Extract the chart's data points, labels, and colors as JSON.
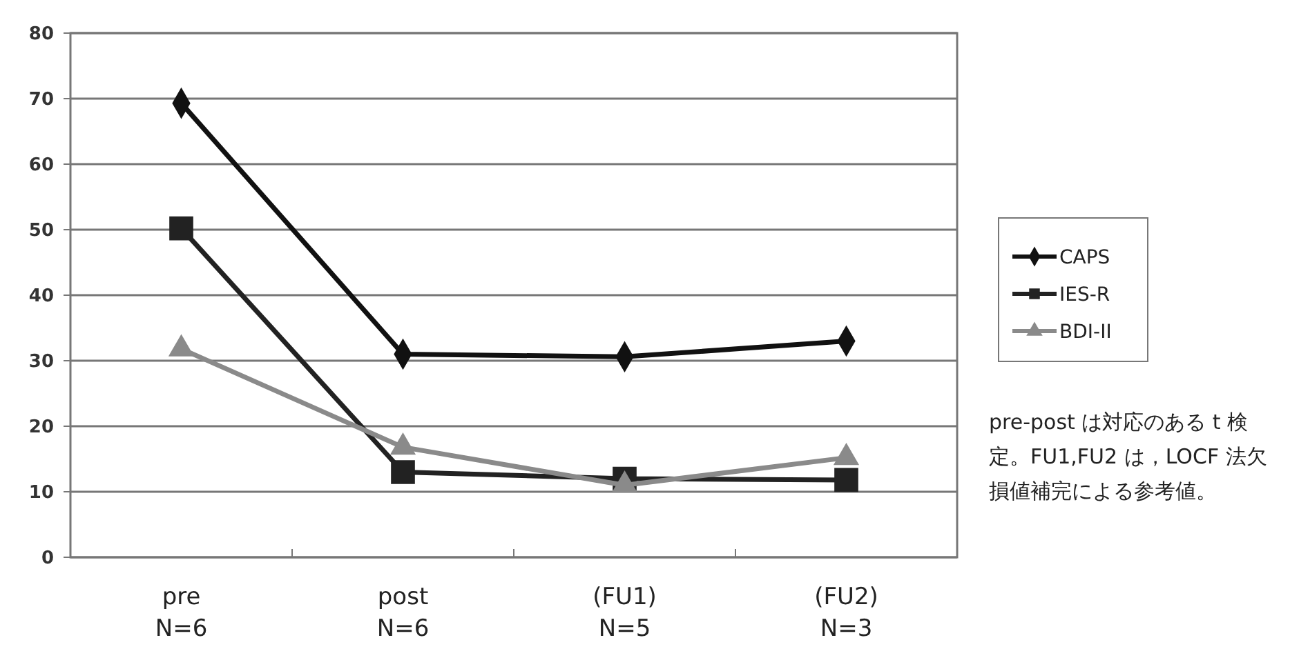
{
  "chart_data": {
    "type": "line",
    "categories": [
      "pre\nN=6",
      "post\nN=6",
      "(FU1)\nN=5",
      "(FU2)\nN=3"
    ],
    "series": [
      {
        "name": "CAPS",
        "color": "#111111",
        "marker": "diamond",
        "values": [
          69.3,
          31,
          30.6,
          33
        ]
      },
      {
        "name": "IES-R",
        "color": "#222222",
        "marker": "square",
        "values": [
          50.2,
          13,
          12,
          11.8
        ]
      },
      {
        "name": "BDI-II",
        "color": "#8a8a8a",
        "marker": "triangle",
        "values": [
          31.8,
          16.8,
          11,
          15.2
        ]
      }
    ],
    "ylim": [
      0,
      80
    ],
    "yticks": [
      0,
      10,
      20,
      30,
      40,
      50,
      60,
      70,
      80
    ],
    "grid": "y",
    "legend": "right",
    "annotations": [
      "pre-post は対応のある t 検定。FU1,FU2 は，LOCF 法欠損値補完による参考値。"
    ]
  }
}
